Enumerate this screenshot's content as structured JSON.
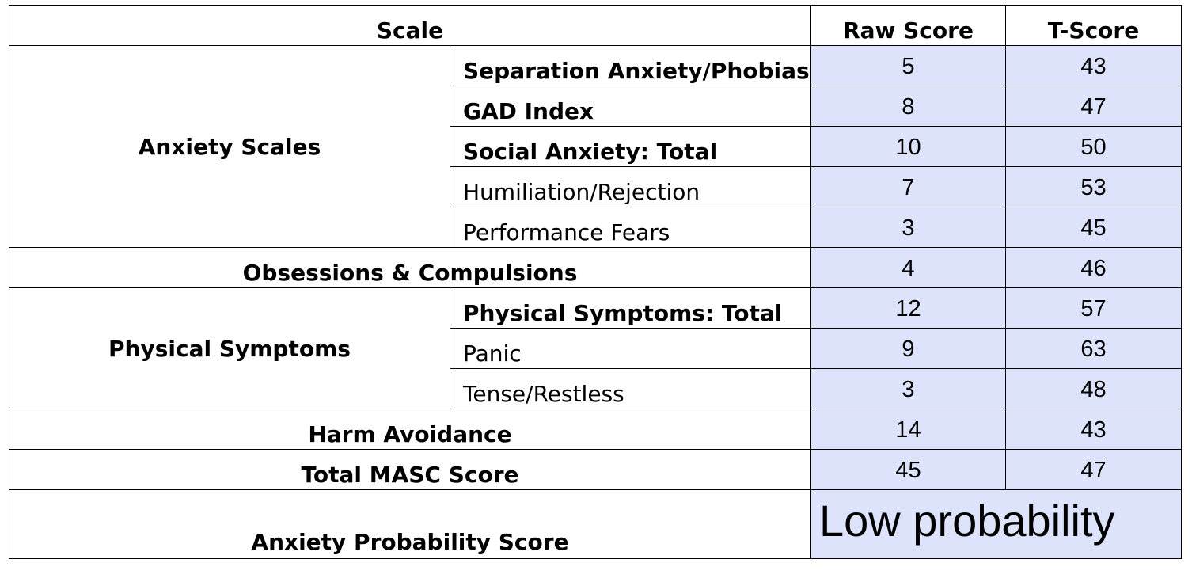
{
  "header": {
    "scale": "Scale",
    "raw": "Raw Score",
    "t": "T-Score"
  },
  "anxiety": {
    "label": "Anxiety Scales",
    "rows": [
      {
        "name": "Separation Anxiety/Phobias",
        "raw": "5",
        "t": "43"
      },
      {
        "name": "GAD Index",
        "raw": "8",
        "t": "47"
      },
      {
        "name": "Social Anxiety: Total",
        "raw": "10",
        "t": "50"
      },
      {
        "name": "Humiliation/Rejection",
        "raw": "7",
        "t": "53"
      },
      {
        "name": "Performance Fears",
        "raw": "3",
        "t": "45"
      }
    ]
  },
  "obsessions": {
    "name": "Obsessions & Compulsions",
    "raw": "4",
    "t": "46"
  },
  "physical": {
    "label": "Physical Symptoms",
    "rows": [
      {
        "name": "Physical Symptoms: Total",
        "raw": "12",
        "t": "57"
      },
      {
        "name": "Panic",
        "raw": "9",
        "t": "63"
      },
      {
        "name": "Tense/Restless",
        "raw": "3",
        "t": "48"
      }
    ]
  },
  "harm": {
    "name": "Harm Avoidance",
    "raw": "14",
    "t": "43"
  },
  "total": {
    "name": "Total MASC Score",
    "raw": "45",
    "t": "47"
  },
  "probability": {
    "name": "Anxiety Probability Score",
    "value": "Low probability"
  },
  "colors": {
    "score_fill": "#dce3fa",
    "border": "#000000"
  }
}
